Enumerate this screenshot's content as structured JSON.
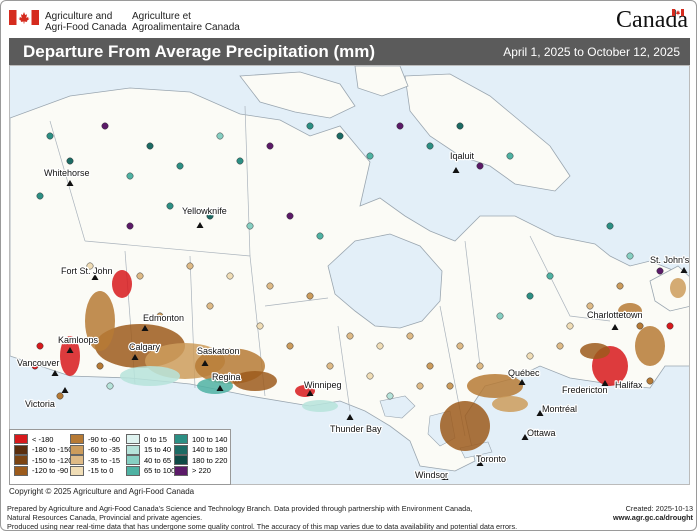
{
  "header": {
    "dept_en_line1": "Agriculture and",
    "dept_en_line2": "Agri-Food Canada",
    "dept_fr_line1": "Agriculture et",
    "dept_fr_line2": "Agroalimentaire Canada",
    "wordmark": "Canada"
  },
  "titlebar": {
    "title": "Departure From Average Precipitation (mm)",
    "date_range": "April 1, 2025 to October 12, 2025"
  },
  "cities": [
    {
      "name": "Whitehorse"
    },
    {
      "name": "Yellowknife"
    },
    {
      "name": "Iqaluit"
    },
    {
      "name": "Fort St. John"
    },
    {
      "name": "St. John's"
    },
    {
      "name": "Edmonton"
    },
    {
      "name": "Kamloops"
    },
    {
      "name": "Calgary"
    },
    {
      "name": "Saskatoon"
    },
    {
      "name": "Vancouver"
    },
    {
      "name": "Charlottetown"
    },
    {
      "name": "Regina"
    },
    {
      "name": "Winnipeg"
    },
    {
      "name": "Québec"
    },
    {
      "name": "Halifax"
    },
    {
      "name": "Victoria"
    },
    {
      "name": "Fredericton"
    },
    {
      "name": "Montréal"
    },
    {
      "name": "Thunder Bay"
    },
    {
      "name": "Ottawa"
    },
    {
      "name": "Toronto"
    },
    {
      "name": "Windsor"
    }
  ],
  "legend": [
    {
      "label": "< -180",
      "color": "#d7191c"
    },
    {
      "label": "-180 to -150",
      "color": "#5a2e0e"
    },
    {
      "label": "-150 to -120",
      "color": "#7b4413"
    },
    {
      "label": "-120 to -90",
      "color": "#9c5b1c"
    },
    {
      "label": "-90 to -60",
      "color": "#b67a35"
    },
    {
      "label": "-60 to -35",
      "color": "#cc9c5c"
    },
    {
      "label": "-35 to -15",
      "color": "#deba86"
    },
    {
      "label": "-15 to 0",
      "color": "#f0ddb6"
    },
    {
      "label": "0 to 15",
      "color": "#dff3f0"
    },
    {
      "label": "15 to 40",
      "color": "#b6e3da"
    },
    {
      "label": "40 to 65",
      "color": "#86cfc2"
    },
    {
      "label": "65 to 100",
      "color": "#4fb2a3"
    },
    {
      "label": "100 to 140",
      "color": "#2c8f84"
    },
    {
      "label": "140 to 180",
      "color": "#1c6b64"
    },
    {
      "label": "180 to 220",
      "color": "#0e4a45"
    },
    {
      "label": "> 220",
      "color": "#5b1a68"
    }
  ],
  "copyright": "Copyright © 2025 Agriculture and Agri-Food Canada",
  "footer": {
    "line1": "Prepared by Agriculture and Agri-Food Canada's Science and Technology Branch. Data provided through partnership with Environment Canada,",
    "line2": "Natural Resources Canada, Provincial and private agencies.",
    "line3": "Produced using near real-time data that has undergone some quality control. The accuracy of this map varies due to data availability and potential data errors.",
    "created": "Created: 2025-10-13",
    "url": "www.agr.gc.ca/drought"
  },
  "colors": {
    "titlebar_bg": "#5b5b5b",
    "land": "#fbfbf6",
    "water": "#e3eff8",
    "flag_red": "#d52b1e"
  }
}
